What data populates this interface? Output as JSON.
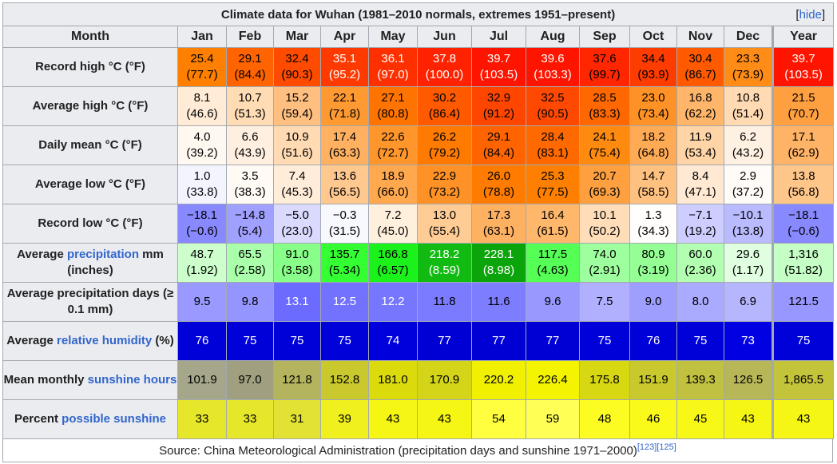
{
  "title": "Climate data for Wuhan (1981–2010 normals, extremes 1951–present)",
  "hide_bracket_open": "[",
  "hide_label": "hide",
  "hide_bracket_close": "]",
  "month_header": "Month",
  "months": [
    "Jan",
    "Feb",
    "Mar",
    "Apr",
    "May",
    "Jun",
    "Jul",
    "Aug",
    "Sep",
    "Oct",
    "Nov",
    "Dec",
    "Year"
  ],
  "rows": [
    {
      "label_parts": [
        {
          "text": "Record high °C (°F)",
          "link": false
        }
      ],
      "cells": [
        {
          "l1": "25.4",
          "l2": "(77.7)",
          "bg": "#ff8000",
          "fg": "#000000"
        },
        {
          "l1": "29.1",
          "l2": "(84.4)",
          "bg": "#ff6400",
          "fg": "#000000"
        },
        {
          "l1": "32.4",
          "l2": "(90.3)",
          "bg": "#ff4b00",
          "fg": "#000000"
        },
        {
          "l1": "35.1",
          "l2": "(95.2)",
          "bg": "#ff3a00",
          "fg": "#ffffff"
        },
        {
          "l1": "36.1",
          "l2": "(97.0)",
          "bg": "#ff3000",
          "fg": "#ffffff"
        },
        {
          "l1": "37.8",
          "l2": "(100.0)",
          "bg": "#ff2200",
          "fg": "#ffffff"
        },
        {
          "l1": "39.7",
          "l2": "(103.5)",
          "bg": "#ff1400",
          "fg": "#ffffff"
        },
        {
          "l1": "39.6",
          "l2": "(103.3)",
          "bg": "#ff1400",
          "fg": "#ffffff"
        },
        {
          "l1": "37.6",
          "l2": "(99.7)",
          "bg": "#ff2600",
          "fg": "#000000"
        },
        {
          "l1": "34.4",
          "l2": "(93.9)",
          "bg": "#ff3c00",
          "fg": "#000000"
        },
        {
          "l1": "30.4",
          "l2": "(86.7)",
          "bg": "#ff5a00",
          "fg": "#000000"
        },
        {
          "l1": "23.3",
          "l2": "(73.9)",
          "bg": "#ff8c16",
          "fg": "#000000"
        },
        {
          "l1": "39.7",
          "l2": "(103.5)",
          "bg": "#ff1400",
          "fg": "#ffffff"
        }
      ]
    },
    {
      "label_parts": [
        {
          "text": "Average high °C (°F)",
          "link": false
        }
      ],
      "cells": [
        {
          "l1": "8.1",
          "l2": "(46.6)",
          "bg": "#ffebd6",
          "fg": "#000000"
        },
        {
          "l1": "10.7",
          "l2": "(51.3)",
          "bg": "#ffdcb4",
          "fg": "#000000"
        },
        {
          "l1": "15.2",
          "l2": "(59.4)",
          "bg": "#ffbf80",
          "fg": "#000000"
        },
        {
          "l1": "22.1",
          "l2": "(71.8)",
          "bg": "#ff9a33",
          "fg": "#000000"
        },
        {
          "l1": "27.1",
          "l2": "(80.8)",
          "bg": "#ff7300",
          "fg": "#000000"
        },
        {
          "l1": "30.2",
          "l2": "(86.4)",
          "bg": "#ff5a00",
          "fg": "#000000"
        },
        {
          "l1": "32.9",
          "l2": "(91.2)",
          "bg": "#ff4600",
          "fg": "#000000"
        },
        {
          "l1": "32.5",
          "l2": "(90.5)",
          "bg": "#ff4900",
          "fg": "#000000"
        },
        {
          "l1": "28.5",
          "l2": "(83.3)",
          "bg": "#ff6800",
          "fg": "#000000"
        },
        {
          "l1": "23.0",
          "l2": "(73.4)",
          "bg": "#ff9226",
          "fg": "#000000"
        },
        {
          "l1": "16.8",
          "l2": "(62.2)",
          "bg": "#ffb56a",
          "fg": "#000000"
        },
        {
          "l1": "10.8",
          "l2": "(51.4)",
          "bg": "#ffdab2",
          "fg": "#000000"
        },
        {
          "l1": "21.5",
          "l2": "(70.7)",
          "bg": "#ffa040",
          "fg": "#000000"
        }
      ]
    },
    {
      "label_parts": [
        {
          "text": "Daily mean °C (°F)",
          "link": false
        }
      ],
      "cells": [
        {
          "l1": "4.0",
          "l2": "(39.2)",
          "bg": "#fff8f1",
          "fg": "#000000"
        },
        {
          "l1": "6.6",
          "l2": "(43.9)",
          "bg": "#ffefe0",
          "fg": "#000000"
        },
        {
          "l1": "10.9",
          "l2": "(51.6)",
          "bg": "#ffdab2",
          "fg": "#000000"
        },
        {
          "l1": "17.4",
          "l2": "(63.3)",
          "bg": "#ffb060",
          "fg": "#000000"
        },
        {
          "l1": "22.6",
          "l2": "(72.7)",
          "bg": "#ff962c",
          "fg": "#000000"
        },
        {
          "l1": "26.2",
          "l2": "(79.2)",
          "bg": "#ff7a00",
          "fg": "#000000"
        },
        {
          "l1": "29.1",
          "l2": "(84.4)",
          "bg": "#ff6400",
          "fg": "#000000"
        },
        {
          "l1": "28.4",
          "l2": "(83.1)",
          "bg": "#ff6900",
          "fg": "#000000"
        },
        {
          "l1": "24.1",
          "l2": "(75.4)",
          "bg": "#ff8a10",
          "fg": "#000000"
        },
        {
          "l1": "18.2",
          "l2": "(64.8)",
          "bg": "#ffab55",
          "fg": "#000000"
        },
        {
          "l1": "11.9",
          "l2": "(53.4)",
          "bg": "#ffd4a6",
          "fg": "#000000"
        },
        {
          "l1": "6.2",
          "l2": "(43.2)",
          "bg": "#fff1e2",
          "fg": "#000000"
        },
        {
          "l1": "17.1",
          "l2": "(62.9)",
          "bg": "#ffb366",
          "fg": "#000000"
        }
      ]
    },
    {
      "label_parts": [
        {
          "text": "Average low °C (°F)",
          "link": false
        }
      ],
      "cells": [
        {
          "l1": "1.0",
          "l2": "(33.8)",
          "bg": "#f4f4ff",
          "fg": "#000000"
        },
        {
          "l1": "3.5",
          "l2": "(38.3)",
          "bg": "#fffaf4",
          "fg": "#000000"
        },
        {
          "l1": "7.4",
          "l2": "(45.3)",
          "bg": "#ffecd9",
          "fg": "#000000"
        },
        {
          "l1": "13.6",
          "l2": "(56.5)",
          "bg": "#ffc88e",
          "fg": "#000000"
        },
        {
          "l1": "18.9",
          "l2": "(66.0)",
          "bg": "#ffa84e",
          "fg": "#000000"
        },
        {
          "l1": "22.9",
          "l2": "(73.2)",
          "bg": "#ff9226",
          "fg": "#000000"
        },
        {
          "l1": "26.0",
          "l2": "(78.8)",
          "bg": "#ff7c00",
          "fg": "#000000"
        },
        {
          "l1": "25.3",
          "l2": "(77.5)",
          "bg": "#ff8000",
          "fg": "#000000"
        },
        {
          "l1": "20.7",
          "l2": "(69.3)",
          "bg": "#ffa040",
          "fg": "#000000"
        },
        {
          "l1": "14.7",
          "l2": "(58.5)",
          "bg": "#ffc180",
          "fg": "#000000"
        },
        {
          "l1": "8.4",
          "l2": "(47.1)",
          "bg": "#ffe9d2",
          "fg": "#000000"
        },
        {
          "l1": "2.9",
          "l2": "(37.2)",
          "bg": "#fffcf8",
          "fg": "#000000"
        },
        {
          "l1": "13.8",
          "l2": "(56.8)",
          "bg": "#ffc68a",
          "fg": "#000000"
        }
      ]
    },
    {
      "label_parts": [
        {
          "text": "Record low °C (°F)",
          "link": false
        }
      ],
      "cells": [
        {
          "l1": "−18.1",
          "l2": "(−0.6)",
          "bg": "#8888ff",
          "fg": "#000000"
        },
        {
          "l1": "−14.8",
          "l2": "(5.4)",
          "bg": "#a0a0ff",
          "fg": "#000000"
        },
        {
          "l1": "−5.0",
          "l2": "(23.0)",
          "bg": "#dadaff",
          "fg": "#000000"
        },
        {
          "l1": "−0.3",
          "l2": "(31.5)",
          "bg": "#f8f8ff",
          "fg": "#000000"
        },
        {
          "l1": "7.2",
          "l2": "(45.0)",
          "bg": "#ffefdd",
          "fg": "#000000"
        },
        {
          "l1": "13.0",
          "l2": "(55.4)",
          "bg": "#ffcc96",
          "fg": "#000000"
        },
        {
          "l1": "17.3",
          "l2": "(63.1)",
          "bg": "#ffb162",
          "fg": "#000000"
        },
        {
          "l1": "16.4",
          "l2": "(61.5)",
          "bg": "#ffb76c",
          "fg": "#000000"
        },
        {
          "l1": "10.1",
          "l2": "(50.2)",
          "bg": "#ffddb8",
          "fg": "#000000"
        },
        {
          "l1": "1.3",
          "l2": "(34.3)",
          "bg": "#fffefd",
          "fg": "#000000"
        },
        {
          "l1": "−7.1",
          "l2": "(19.2)",
          "bg": "#cdcdff",
          "fg": "#000000"
        },
        {
          "l1": "−10.1",
          "l2": "(13.8)",
          "bg": "#babaff",
          "fg": "#000000"
        },
        {
          "l1": "−18.1",
          "l2": "(−0.6)",
          "bg": "#8888ff",
          "fg": "#000000"
        }
      ]
    },
    {
      "label_parts": [
        {
          "text": "Average ",
          "link": false
        },
        {
          "text": "precipitation",
          "link": true
        },
        {
          "text": " mm (inches)",
          "link": false
        }
      ],
      "cells": [
        {
          "l1": "48.7",
          "l2": "(1.92)",
          "bg": "#ccffcc",
          "fg": "#000000"
        },
        {
          "l1": "65.5",
          "l2": "(2.58)",
          "bg": "#aaffaa",
          "fg": "#000000"
        },
        {
          "l1": "91.0",
          "l2": "(3.58)",
          "bg": "#88ff88",
          "fg": "#000000"
        },
        {
          "l1": "135.7",
          "l2": "(5.34)",
          "bg": "#33ff33",
          "fg": "#000000"
        },
        {
          "l1": "166.8",
          "l2": "(6.57)",
          "bg": "#1bf21b",
          "fg": "#000000"
        },
        {
          "l1": "218.2",
          "l2": "(8.59)",
          "bg": "#11bb11",
          "fg": "#ffffff"
        },
        {
          "l1": "228.1",
          "l2": "(8.98)",
          "bg": "#0ba50b",
          "fg": "#ffffff"
        },
        {
          "l1": "117.5",
          "l2": "(4.63)",
          "bg": "#55ff55",
          "fg": "#000000"
        },
        {
          "l1": "74.0",
          "l2": "(2.91)",
          "bg": "#9dff9d",
          "fg": "#000000"
        },
        {
          "l1": "80.9",
          "l2": "(3.19)",
          "bg": "#95ff95",
          "fg": "#000000"
        },
        {
          "l1": "60.0",
          "l2": "(2.36)",
          "bg": "#b2ffb2",
          "fg": "#000000"
        },
        {
          "l1": "29.6",
          "l2": "(1.17)",
          "bg": "#e0ffe0",
          "fg": "#000000"
        },
        {
          "l1": "1,316",
          "l2": "(51.82)",
          "bg": "#c5ffc5",
          "fg": "#000000"
        }
      ]
    },
    {
      "label_parts": [
        {
          "text": "Average precipitation days (≥ 0.1 mm)",
          "link": false
        }
      ],
      "cells": [
        {
          "l1": "9.5",
          "l2": "",
          "bg": "#9999ff",
          "fg": "#000000"
        },
        {
          "l1": "9.8",
          "l2": "",
          "bg": "#9595ff",
          "fg": "#000000"
        },
        {
          "l1": "13.1",
          "l2": "",
          "bg": "#6b6bff",
          "fg": "#ffffff"
        },
        {
          "l1": "12.5",
          "l2": "",
          "bg": "#7272ff",
          "fg": "#ffffff"
        },
        {
          "l1": "12.2",
          "l2": "",
          "bg": "#7676ff",
          "fg": "#ffffff"
        },
        {
          "l1": "11.8",
          "l2": "",
          "bg": "#7b7bff",
          "fg": "#000000"
        },
        {
          "l1": "11.6",
          "l2": "",
          "bg": "#7d7dff",
          "fg": "#000000"
        },
        {
          "l1": "9.6",
          "l2": "",
          "bg": "#9898ff",
          "fg": "#000000"
        },
        {
          "l1": "7.5",
          "l2": "",
          "bg": "#b0b0ff",
          "fg": "#000000"
        },
        {
          "l1": "9.0",
          "l2": "",
          "bg": "#9e9eff",
          "fg": "#000000"
        },
        {
          "l1": "8.0",
          "l2": "",
          "bg": "#aaaaff",
          "fg": "#000000"
        },
        {
          "l1": "6.9",
          "l2": "",
          "bg": "#b6b6ff",
          "fg": "#000000"
        },
        {
          "l1": "121.5",
          "l2": "",
          "bg": "#9797ff",
          "fg": "#000000"
        }
      ]
    },
    {
      "label_parts": [
        {
          "text": "Average ",
          "link": false
        },
        {
          "text": "relative humidity",
          "link": true
        },
        {
          "text": " (%)",
          "link": false
        }
      ],
      "cells": [
        {
          "l1": "76",
          "l2": "",
          "bg": "#0000d9",
          "fg": "#ffffff"
        },
        {
          "l1": "75",
          "l2": "",
          "bg": "#0000d9",
          "fg": "#ffffff"
        },
        {
          "l1": "75",
          "l2": "",
          "bg": "#0000d9",
          "fg": "#ffffff"
        },
        {
          "l1": "75",
          "l2": "",
          "bg": "#0000d9",
          "fg": "#ffffff"
        },
        {
          "l1": "74",
          "l2": "",
          "bg": "#0000dd",
          "fg": "#ffffff"
        },
        {
          "l1": "77",
          "l2": "",
          "bg": "#0000d4",
          "fg": "#ffffff"
        },
        {
          "l1": "77",
          "l2": "",
          "bg": "#0000d4",
          "fg": "#ffffff"
        },
        {
          "l1": "77",
          "l2": "",
          "bg": "#0000d4",
          "fg": "#ffffff"
        },
        {
          "l1": "75",
          "l2": "",
          "bg": "#0000d9",
          "fg": "#ffffff"
        },
        {
          "l1": "76",
          "l2": "",
          "bg": "#0000d9",
          "fg": "#ffffff"
        },
        {
          "l1": "75",
          "l2": "",
          "bg": "#0000d9",
          "fg": "#ffffff"
        },
        {
          "l1": "73",
          "l2": "",
          "bg": "#0000e2",
          "fg": "#ffffff"
        },
        {
          "l1": "75",
          "l2": "",
          "bg": "#0000d9",
          "fg": "#ffffff"
        }
      ]
    },
    {
      "label_parts": [
        {
          "text": "Mean monthly ",
          "link": false
        },
        {
          "text": "sunshine hours",
          "link": true
        }
      ],
      "cells": [
        {
          "l1": "101.9",
          "l2": "",
          "bg": "#a6a68a",
          "fg": "#000000"
        },
        {
          "l1": "97.0",
          "l2": "",
          "bg": "#a0a081",
          "fg": "#000000"
        },
        {
          "l1": "121.8",
          "l2": "",
          "bg": "#b4b45e",
          "fg": "#000000"
        },
        {
          "l1": "152.8",
          "l2": "",
          "bg": "#c9c92d",
          "fg": "#000000"
        },
        {
          "l1": "181.0",
          "l2": "",
          "bg": "#dbdb0c",
          "fg": "#000000"
        },
        {
          "l1": "170.9",
          "l2": "",
          "bg": "#d4d418",
          "fg": "#000000"
        },
        {
          "l1": "220.2",
          "l2": "",
          "bg": "#f0f000",
          "fg": "#000000"
        },
        {
          "l1": "226.4",
          "l2": "",
          "bg": "#f4f400",
          "fg": "#000000"
        },
        {
          "l1": "175.8",
          "l2": "",
          "bg": "#d7d712",
          "fg": "#000000"
        },
        {
          "l1": "151.9",
          "l2": "",
          "bg": "#c9c92e",
          "fg": "#000000"
        },
        {
          "l1": "139.3",
          "l2": "",
          "bg": "#c0c041",
          "fg": "#000000"
        },
        {
          "l1": "126.5",
          "l2": "",
          "bg": "#b7b757",
          "fg": "#000000"
        },
        {
          "l1": "1,865.5",
          "l2": "",
          "bg": "#c4c43b",
          "fg": "#000000"
        }
      ]
    },
    {
      "label_parts": [
        {
          "text": "Percent ",
          "link": false
        },
        {
          "text": "possible sunshine",
          "link": true
        }
      ],
      "cells": [
        {
          "l1": "33",
          "l2": "",
          "bg": "#e6e62a",
          "fg": "#000000"
        },
        {
          "l1": "33",
          "l2": "",
          "bg": "#e6e62a",
          "fg": "#000000"
        },
        {
          "l1": "31",
          "l2": "",
          "bg": "#e2e234",
          "fg": "#000000"
        },
        {
          "l1": "39",
          "l2": "",
          "bg": "#f0f01e",
          "fg": "#000000"
        },
        {
          "l1": "43",
          "l2": "",
          "bg": "#f6f614",
          "fg": "#000000"
        },
        {
          "l1": "43",
          "l2": "",
          "bg": "#f6f614",
          "fg": "#000000"
        },
        {
          "l1": "54",
          "l2": "",
          "bg": "#ffff40",
          "fg": "#000000"
        },
        {
          "l1": "59",
          "l2": "",
          "bg": "#ffff55",
          "fg": "#000000"
        },
        {
          "l1": "48",
          "l2": "",
          "bg": "#fcfc22",
          "fg": "#000000"
        },
        {
          "l1": "46",
          "l2": "",
          "bg": "#fafa1a",
          "fg": "#000000"
        },
        {
          "l1": "45",
          "l2": "",
          "bg": "#f8f818",
          "fg": "#000000"
        },
        {
          "l1": "43",
          "l2": "",
          "bg": "#f6f614",
          "fg": "#000000"
        },
        {
          "l1": "43",
          "l2": "",
          "bg": "#f6f614",
          "fg": "#000000"
        }
      ]
    }
  ],
  "source_text": "Source: China Meteorological Administration (precipitation days and sunshine 1971–2000)",
  "source_refs": "[123][125]",
  "colors": {
    "header_bg": "#eaecf0",
    "border": "#a2a9b1",
    "link": "#3366cc",
    "text": "#202122"
  }
}
